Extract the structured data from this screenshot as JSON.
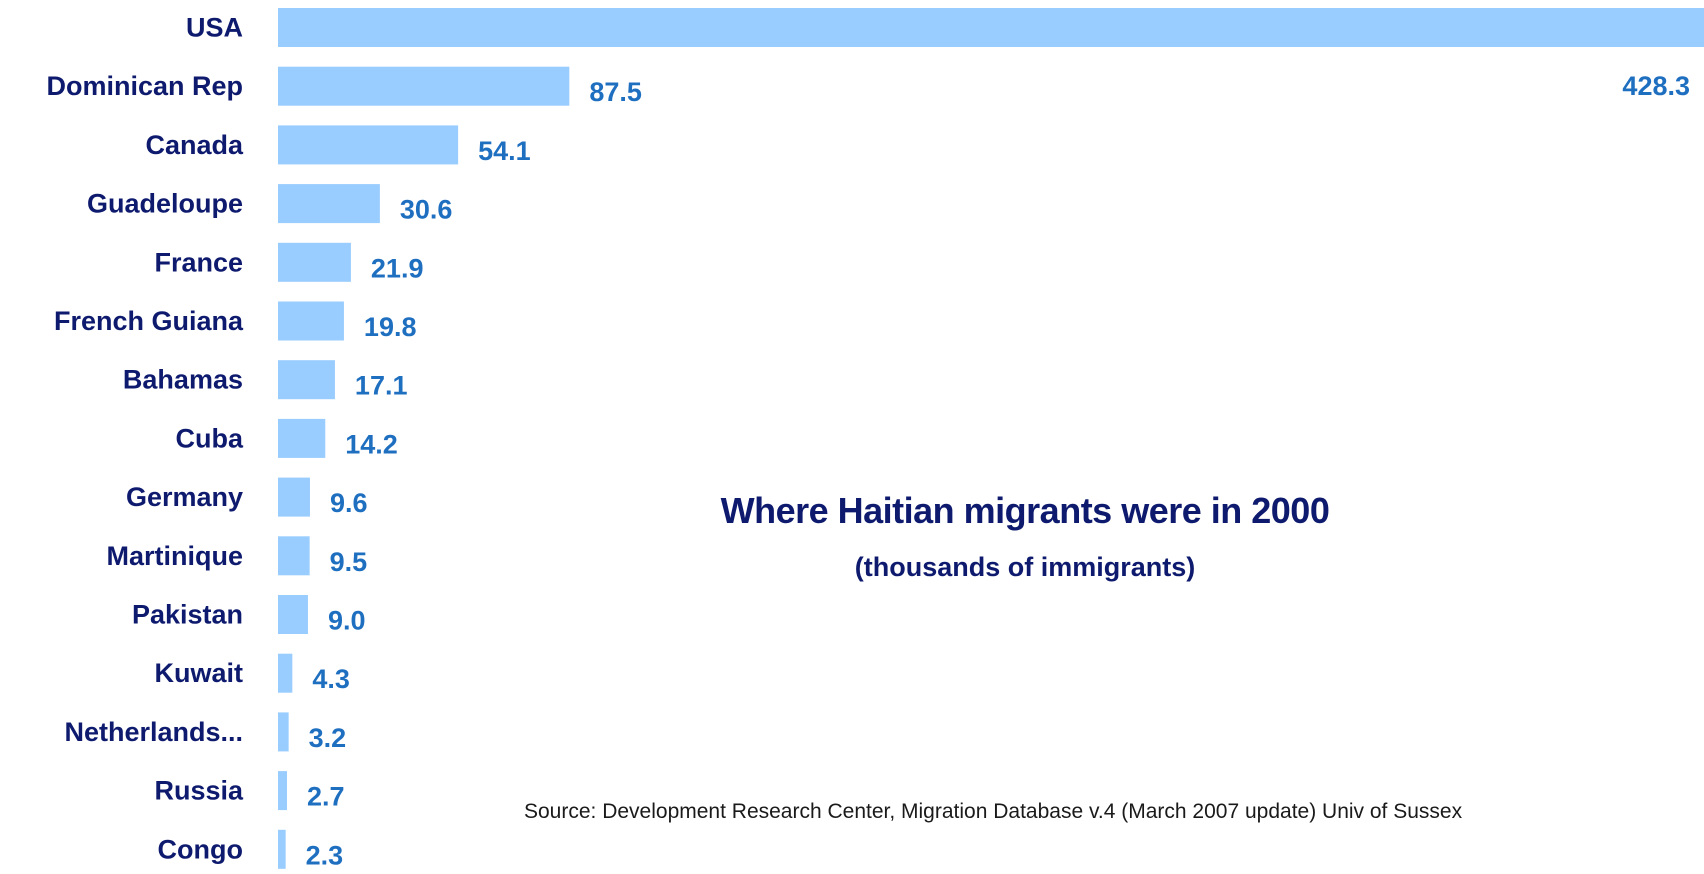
{
  "chart_data": {
    "type": "bar",
    "orientation": "horizontal",
    "title": "Where Haitian migrants were in 2000",
    "subtitle": "(thousands of immigrants)",
    "xlabel": "",
    "ylabel": "",
    "xlim": [
      0,
      428.3
    ],
    "grid": false,
    "categories": [
      "USA",
      "Dominican Rep",
      "Canada",
      "Guadeloupe",
      "France",
      "French Guiana",
      "Bahamas",
      "Cuba",
      "Germany",
      "Martinique",
      "Pakistan",
      "Kuwait",
      "Netherlands...",
      "Russia",
      "Congo"
    ],
    "values": [
      428.3,
      87.5,
      54.1,
      30.6,
      21.9,
      19.8,
      17.1,
      14.2,
      9.6,
      9.5,
      9.0,
      4.3,
      3.2,
      2.7,
      2.3
    ],
    "value_labels": [
      "428.3",
      "87.5",
      "54.1",
      "30.6",
      "21.9",
      "19.8",
      "17.1",
      "14.2",
      "9.6",
      "9.5",
      "9.0",
      "4.3",
      "3.2",
      "2.7",
      "2.3"
    ],
    "source": "Source:  Development Research Center, Migration Database  v.4 (March 2007 update) Univ of Sussex",
    "colors": {
      "bar": "#99ccff",
      "category_text": "#0d1a6e",
      "value_text": "#1f6fc0",
      "title_text": "#0d1a6e"
    }
  }
}
